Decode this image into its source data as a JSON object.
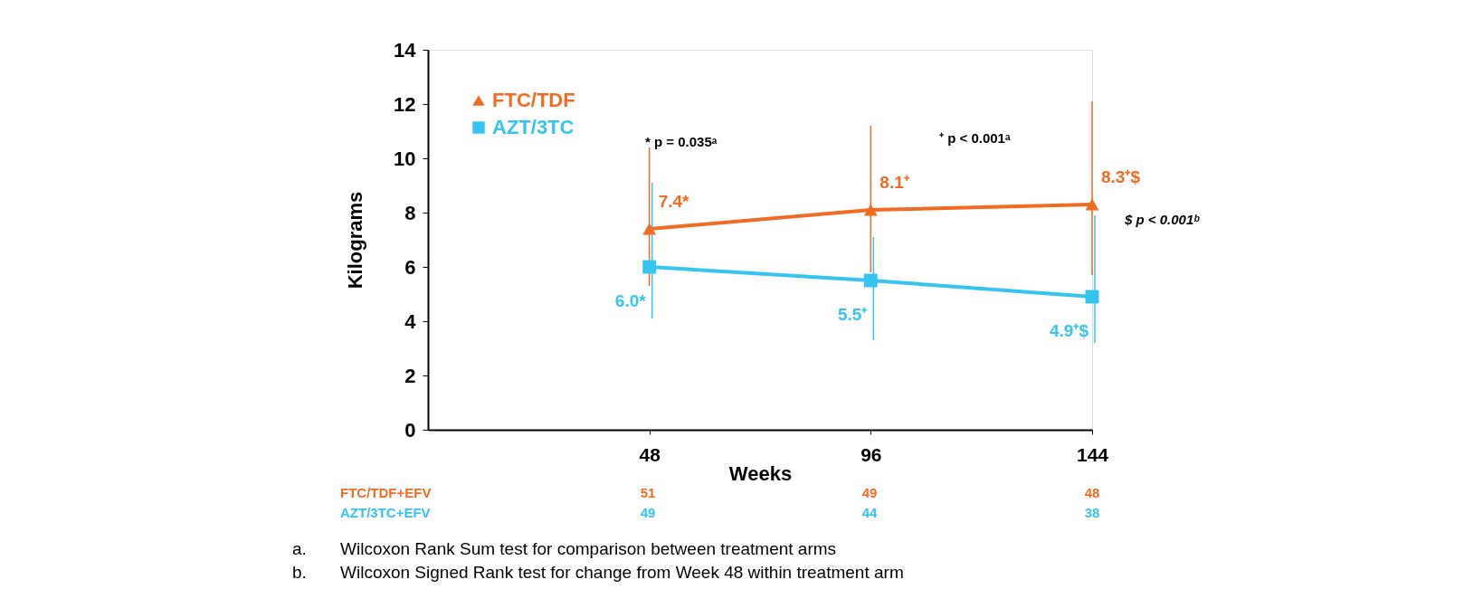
{
  "chart_data": {
    "type": "line",
    "ylabel": "Kilograms",
    "xlabel": "Weeks",
    "x": [
      48,
      96,
      144
    ],
    "xlim": [
      0,
      144
    ],
    "xticks": [
      48,
      96,
      144
    ],
    "ylim": [
      0,
      14
    ],
    "yticks": [
      0,
      2,
      4,
      6,
      8,
      10,
      12,
      14
    ],
    "grid": false,
    "legend": "top left",
    "line_style": "solid",
    "series": [
      {
        "name": "FTC/TDF",
        "color": "#f26b22",
        "marker": "triangle",
        "values": [
          7.4,
          8.1,
          8.3
        ],
        "errors": [
          [
            5.3,
            10.4
          ],
          [
            5.8,
            11.2
          ],
          [
            5.7,
            12.1
          ]
        ],
        "value_labels": [
          "7.4*",
          "8.1⁺",
          "8.3⁺$"
        ]
      },
      {
        "name": "AZT/3TC",
        "color": "#33c4f0",
        "marker": "square",
        "values": [
          6.0,
          5.5,
          4.9
        ],
        "errors": [
          [
            4.1,
            9.1
          ],
          [
            3.3,
            7.1
          ],
          [
            3.2,
            7.9
          ]
        ],
        "value_labels": [
          "6.0*",
          "5.5⁺",
          "4.9⁺$"
        ]
      }
    ],
    "annotations": [
      "* p = 0.035ᵃ",
      "⁺ p < 0.001ᵃ",
      "$ p < 0.001ᵇ",
      "FTC/TDF+EFV",
      "AZT/3TC+EFV",
      "51",
      "49",
      "48",
      "49",
      "44",
      "38",
      "a.",
      "Wilcoxon Rank Sum test for comparison between treatment arms",
      "b.",
      "Wilcoxon Signed Rank test for change from Week 48 within treatment arm"
    ]
  }
}
